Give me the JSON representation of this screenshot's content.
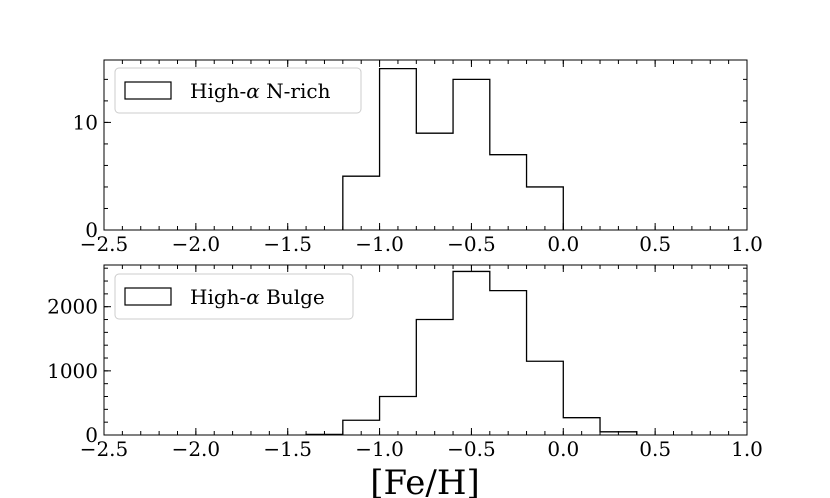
{
  "xlabel": "[Fe/H]",
  "chart_data": [
    {
      "type": "bar",
      "subtype": "histogram-step",
      "legend": {
        "label_prefix": "High-",
        "label_symbol": "α",
        "label_suffix": " N-rich",
        "placement": "top-left"
      },
      "bin_edges": [
        -1.2,
        -1.0,
        -0.8,
        -0.6,
        -0.4,
        -0.2,
        0.0
      ],
      "counts": [
        5,
        15,
        9,
        14,
        7,
        4
      ],
      "xlim": [
        -2.5,
        1.0
      ],
      "ylim": [
        0,
        15.8
      ],
      "xticks": [
        -2.5,
        -2.0,
        -1.5,
        -1.0,
        -0.5,
        0.0,
        0.5,
        1.0
      ],
      "xtick_labels": [
        "−2.5",
        "−2.0",
        "−1.5",
        "−1.0",
        "−0.5",
        "0.0",
        "0.5",
        "1.0"
      ],
      "yticks": [
        0,
        10
      ],
      "ytick_labels": [
        "0",
        "10"
      ],
      "y_minor_step": 2
    },
    {
      "type": "bar",
      "subtype": "histogram-step",
      "legend": {
        "label_prefix": "High-",
        "label_symbol": "α",
        "label_suffix": " Bulge",
        "placement": "top-left"
      },
      "bin_edges": [
        -1.4,
        -1.2,
        -1.0,
        -0.8,
        -0.6,
        -0.4,
        -0.2,
        0.0,
        0.2,
        0.4
      ],
      "counts": [
        10,
        230,
        600,
        1800,
        2550,
        2250,
        1150,
        270,
        50
      ],
      "xlim": [
        -2.5,
        1.0
      ],
      "ylim": [
        0,
        2650
      ],
      "xticks": [
        -2.5,
        -2.0,
        -1.5,
        -1.0,
        -0.5,
        0.0,
        0.5,
        1.0
      ],
      "xtick_labels": [
        "−2.5",
        "−2.0",
        "−1.5",
        "−1.0",
        "−0.5",
        "0.0",
        "0.5",
        "1.0"
      ],
      "yticks": [
        0,
        1000,
        2000
      ],
      "ytick_labels": [
        "0",
        "1000",
        "2000"
      ],
      "y_minor_step": 200
    }
  ]
}
